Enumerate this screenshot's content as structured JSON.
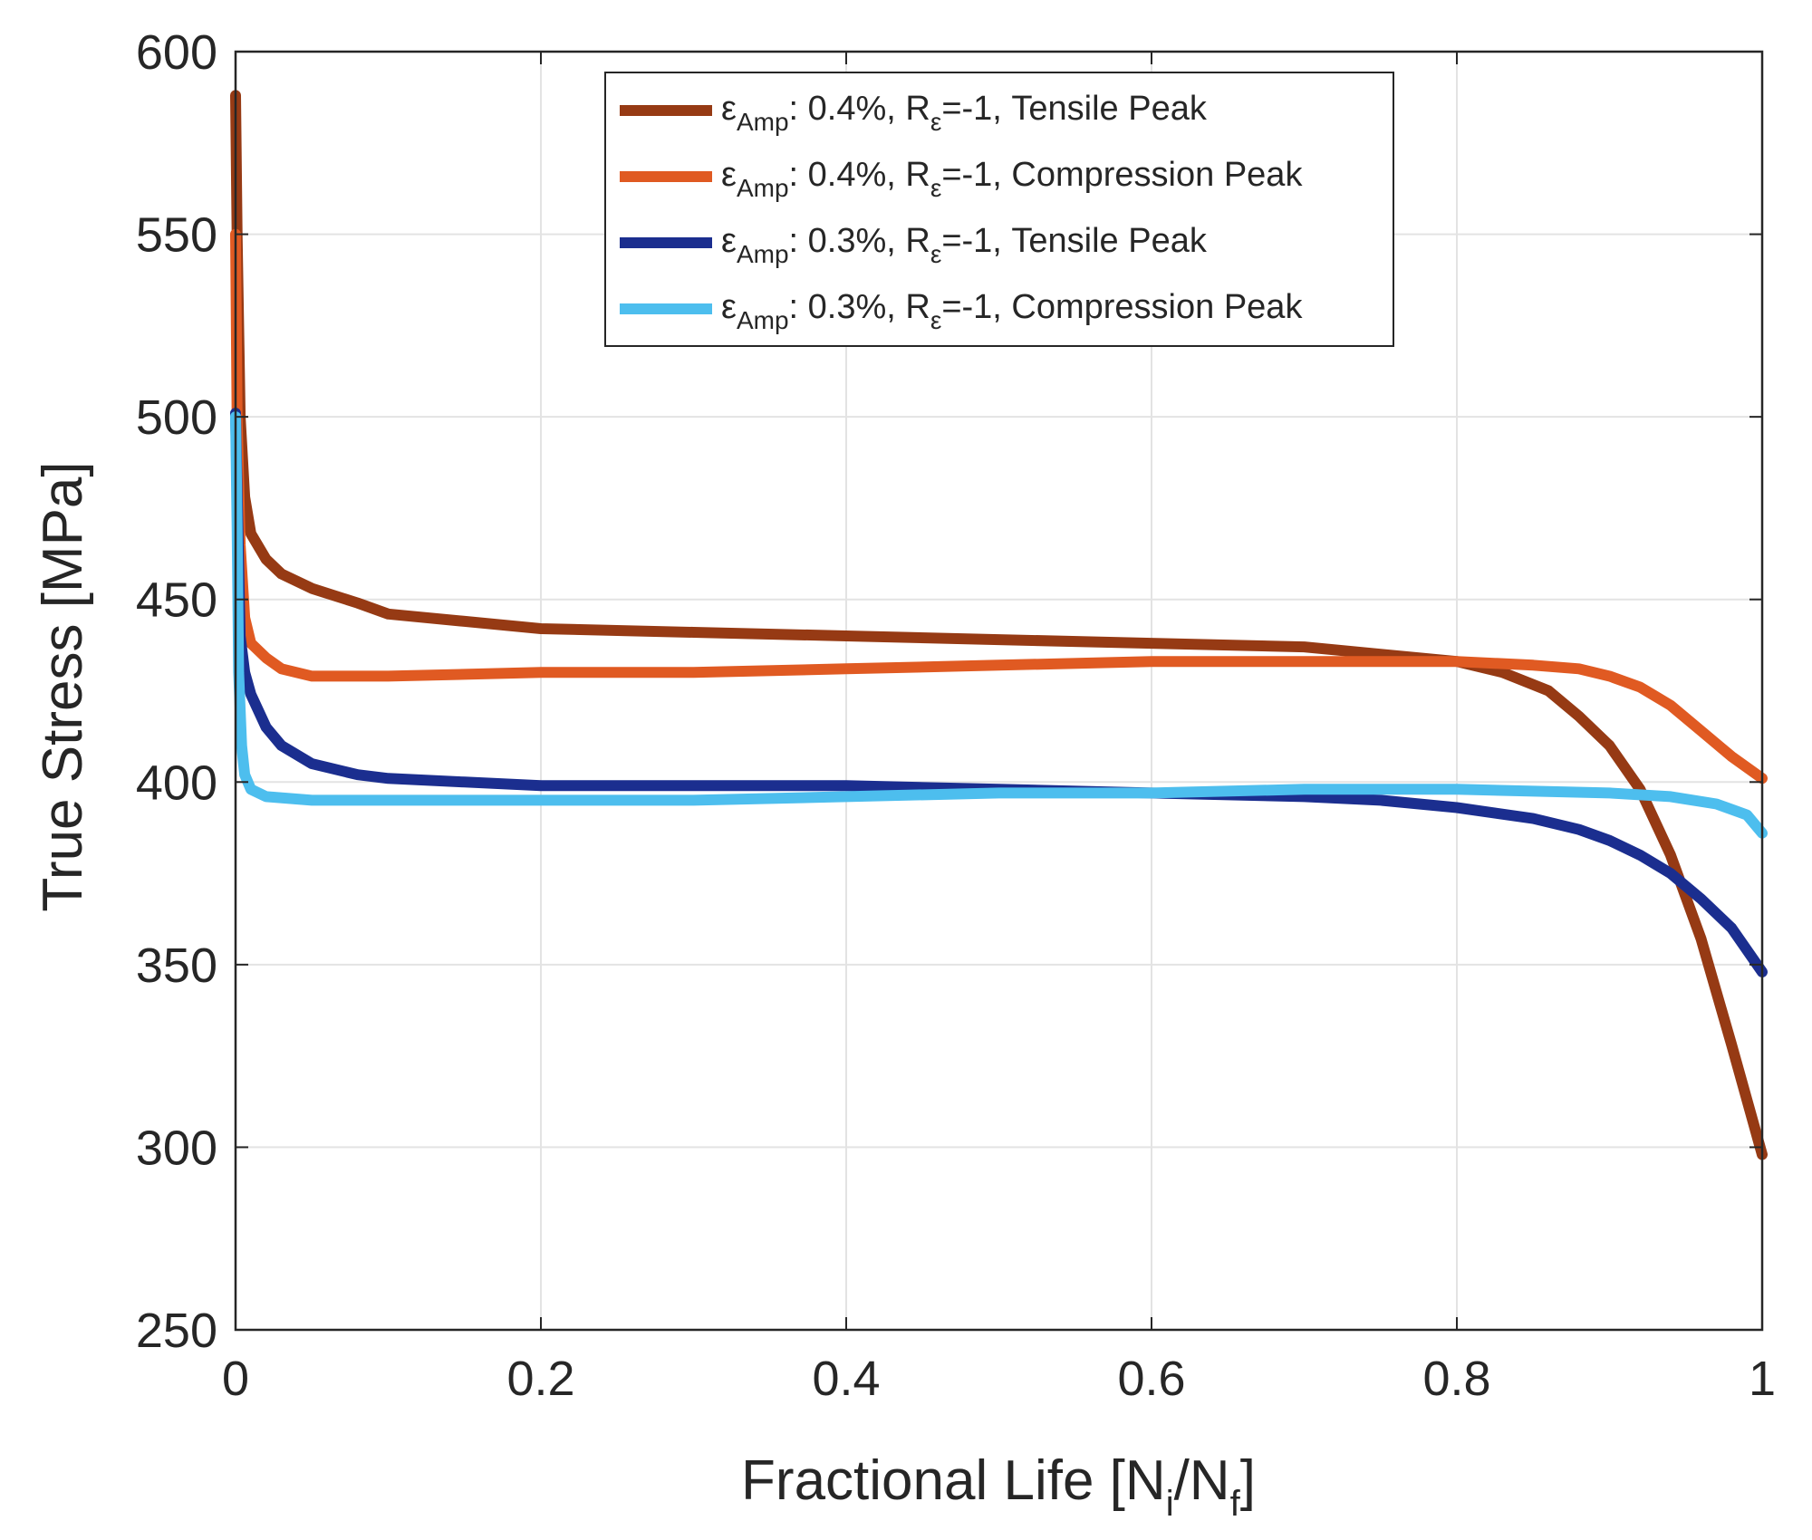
{
  "chart_data": {
    "type": "line",
    "xlabel": "Fractional Life [N",
    "xlabel_sub1": "i",
    "xlabel_mid": "/N",
    "xlabel_sub2": "f",
    "xlabel_end": "]",
    "ylabel": "True Stress [MPa]",
    "xlim": [
      0,
      1
    ],
    "ylim": [
      250,
      600
    ],
    "xticks": [
      0,
      0.2,
      0.4,
      0.6,
      0.8,
      1
    ],
    "xtick_labels": [
      "0",
      "0.2",
      "0.4",
      "0.6",
      "0.8",
      "1"
    ],
    "yticks": [
      250,
      300,
      350,
      400,
      450,
      500,
      550,
      600
    ],
    "ytick_labels": [
      "250",
      "300",
      "350",
      "400",
      "450",
      "500",
      "550",
      "600"
    ],
    "grid": true,
    "legend_position": "top-center",
    "series": [
      {
        "name": "εAmp: 0.4%, Rε=-1, Tensile Peak",
        "label_eps": "ε",
        "label_sub": "Amp",
        "label_mid": ": 0.4%, R",
        "label_sub2": "ε",
        "label_end": "=-1, Tensile Peak",
        "color": "#963A14",
        "x": [
          0,
          0.001,
          0.003,
          0.006,
          0.01,
          0.02,
          0.03,
          0.05,
          0.08,
          0.1,
          0.15,
          0.2,
          0.3,
          0.4,
          0.5,
          0.6,
          0.7,
          0.75,
          0.8,
          0.83,
          0.86,
          0.88,
          0.9,
          0.92,
          0.94,
          0.96,
          0.98,
          1.0
        ],
        "y": [
          588,
          550,
          500,
          478,
          468,
          461,
          457,
          453,
          449,
          446,
          444,
          442,
          441,
          440,
          439,
          438,
          437,
          435,
          433,
          430,
          425,
          418,
          410,
          398,
          380,
          357,
          328,
          298
        ]
      },
      {
        "name": "εAmp: 0.4%, Rε=-1, Compression Peak",
        "label_eps": "ε",
        "label_sub": "Amp",
        "label_mid": ": 0.4%, R",
        "label_sub2": "ε",
        "label_end": "=-1, Compression Peak",
        "color": "#E05A22",
        "x": [
          0,
          0.001,
          0.003,
          0.006,
          0.01,
          0.02,
          0.03,
          0.05,
          0.1,
          0.2,
          0.3,
          0.4,
          0.5,
          0.6,
          0.7,
          0.8,
          0.85,
          0.88,
          0.9,
          0.92,
          0.94,
          0.96,
          0.98,
          1.0
        ],
        "y": [
          550,
          500,
          465,
          445,
          438,
          434,
          431,
          429,
          429,
          430,
          430,
          431,
          432,
          433,
          433,
          433,
          432,
          431,
          429,
          426,
          421,
          414,
          407,
          401
        ]
      },
      {
        "name": "εAmp: 0.3%, Rε=-1, Tensile Peak",
        "label_eps": "ε",
        "label_sub": "Amp",
        "label_mid": ": 0.3%, R",
        "label_sub2": "ε",
        "label_end": "=-1, Tensile Peak",
        "color": "#1B2E8F",
        "x": [
          0,
          0.001,
          0.003,
          0.006,
          0.01,
          0.02,
          0.03,
          0.05,
          0.08,
          0.1,
          0.15,
          0.2,
          0.3,
          0.4,
          0.5,
          0.6,
          0.7,
          0.75,
          0.8,
          0.85,
          0.88,
          0.9,
          0.92,
          0.94,
          0.96,
          0.98,
          1.0
        ],
        "y": [
          501,
          480,
          440,
          430,
          424,
          415,
          410,
          405,
          402,
          401,
          400,
          399,
          399,
          399,
          398,
          397,
          396,
          395,
          393,
          390,
          387,
          384,
          380,
          375,
          368,
          360,
          348
        ]
      },
      {
        "name": "εAmp: 0.3%, Rε=-1, Compression Peak",
        "label_eps": "ε",
        "label_sub": "Amp",
        "label_mid": ": 0.3%, R",
        "label_sub2": "ε",
        "label_end": "=-1, Compression Peak",
        "color": "#4DBEEE",
        "x": [
          0,
          0.001,
          0.002,
          0.004,
          0.006,
          0.01,
          0.02,
          0.05,
          0.1,
          0.2,
          0.3,
          0.4,
          0.5,
          0.6,
          0.7,
          0.8,
          0.9,
          0.94,
          0.97,
          0.99,
          1.0
        ],
        "y": [
          500,
          470,
          430,
          410,
          402,
          398,
          396,
          395,
          395,
          395,
          395,
          396,
          397,
          397,
          398,
          398,
          397,
          396,
          394,
          391,
          386
        ]
      }
    ]
  }
}
